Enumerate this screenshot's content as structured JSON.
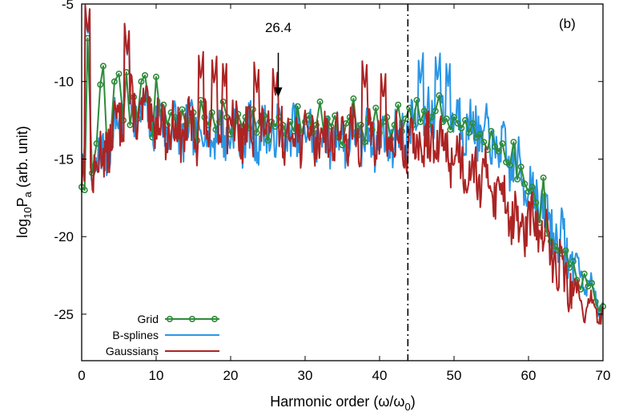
{
  "chart_data": {
    "type": "line",
    "panel_label": "(b)",
    "xlabel": {
      "main": "Harmonic order (ω/ω",
      "sub": "0",
      "close": ")"
    },
    "ylabel": {
      "prefix": "log",
      "sub1": "10",
      "mid": "P",
      "sub2": "a",
      "suffix": " (arb. unit)"
    },
    "xlim": [
      0,
      70
    ],
    "ylim": [
      -28,
      -5
    ],
    "x_ticks": [
      0,
      10,
      20,
      30,
      40,
      50,
      60,
      70
    ],
    "y_ticks": [
      -5,
      -10,
      -15,
      -20,
      -25
    ],
    "vertical_line": {
      "x": 43.8,
      "style": "dash-dot"
    },
    "annotation": {
      "text": "26.4",
      "x": 26.4,
      "arrow_from_y": -6.8,
      "arrow_to_y": -11.0
    },
    "grid": false,
    "legend_position": "bottom-left",
    "colors": {
      "grid": "#2e8b3a",
      "bsplines": "#2a96e6",
      "gaussians": "#ac2424"
    },
    "series": [
      {
        "name": "Grid",
        "marker": "circle",
        "points": [
          [
            0,
            -16.8
          ],
          [
            0.4,
            -17.0
          ],
          [
            0.8,
            -7.2
          ],
          [
            1.4,
            -15.9
          ],
          [
            2.0,
            -14.0
          ],
          [
            2.5,
            -10.2
          ],
          [
            2.9,
            -9.0
          ],
          [
            3.4,
            -14.2
          ],
          [
            3.9,
            -13.5
          ],
          [
            4.4,
            -10.0
          ],
          [
            5.0,
            -9.5
          ],
          [
            5.6,
            -12.5
          ],
          [
            6.0,
            -9.4
          ],
          [
            6.5,
            -12.8
          ],
          [
            7.0,
            -11.0
          ],
          [
            7.5,
            -12.4
          ],
          [
            8.0,
            -10.0
          ],
          [
            8.5,
            -9.6
          ],
          [
            9.0,
            -11.2
          ],
          [
            9.5,
            -13.6
          ],
          [
            10.0,
            -9.7
          ],
          [
            10.5,
            -12.0
          ],
          [
            11.0,
            -11.5
          ],
          [
            11.5,
            -12.8
          ],
          [
            12.0,
            -12.0
          ],
          [
            12.5,
            -12.3
          ],
          [
            13.0,
            -13.6
          ],
          [
            13.5,
            -11.8
          ],
          [
            14.0,
            -12.8
          ],
          [
            14.5,
            -12.5
          ],
          [
            15.0,
            -12.0
          ],
          [
            15.5,
            -13.8
          ],
          [
            16.0,
            -11.2
          ],
          [
            16.5,
            -12.3
          ],
          [
            17.0,
            -12.8
          ],
          [
            17.5,
            -12.0
          ],
          [
            18.0,
            -13.1
          ],
          [
            18.5,
            -12.6
          ],
          [
            19.0,
            -11.3
          ],
          [
            19.5,
            -12.3
          ],
          [
            20.0,
            -13.4
          ],
          [
            20.5,
            -12.6
          ],
          [
            21.0,
            -12.1
          ],
          [
            21.5,
            -12.9
          ],
          [
            22.0,
            -12.3
          ],
          [
            22.5,
            -13.0
          ],
          [
            23.0,
            -11.8
          ],
          [
            23.5,
            -13.3
          ],
          [
            24.0,
            -12.6
          ],
          [
            24.5,
            -12.2
          ],
          [
            25.0,
            -13.8
          ],
          [
            25.5,
            -12.6
          ],
          [
            26.0,
            -12.9
          ],
          [
            26.5,
            -12.3
          ],
          [
            27.0,
            -12.8
          ],
          [
            27.5,
            -13.4
          ],
          [
            28.0,
            -12.6
          ],
          [
            28.5,
            -13.2
          ],
          [
            29.0,
            -11.6
          ],
          [
            29.5,
            -13.3
          ],
          [
            30.0,
            -12.6
          ],
          [
            30.5,
            -12.2
          ],
          [
            31.0,
            -13.3
          ],
          [
            31.5,
            -12.8
          ],
          [
            32.0,
            -11.3
          ],
          [
            32.5,
            -13.2
          ],
          [
            33.0,
            -12.4
          ],
          [
            33.5,
            -12.9
          ],
          [
            34.0,
            -12.2
          ],
          [
            34.5,
            -13.6
          ],
          [
            35.0,
            -14.1
          ],
          [
            35.5,
            -12.7
          ],
          [
            36.0,
            -12.3
          ],
          [
            36.5,
            -11.1
          ],
          [
            37.0,
            -13.5
          ],
          [
            37.5,
            -12.8
          ],
          [
            38.0,
            -13.9
          ],
          [
            38.5,
            -12.4
          ],
          [
            39.0,
            -13.1
          ],
          [
            39.5,
            -11.7
          ],
          [
            40.0,
            -13.3
          ],
          [
            40.5,
            -12.6
          ],
          [
            41.0,
            -12.3
          ],
          [
            41.5,
            -13.7
          ],
          [
            42.0,
            -12.8
          ],
          [
            42.5,
            -11.5
          ],
          [
            43.0,
            -13.2
          ],
          [
            43.5,
            -12.4
          ],
          [
            44.0,
            -11.7
          ],
          [
            44.5,
            -12.8
          ],
          [
            45.0,
            -11.2
          ],
          [
            45.5,
            -12.6
          ],
          [
            46.0,
            -11.9
          ],
          [
            46.5,
            -12.8
          ],
          [
            47.0,
            -12.3
          ],
          [
            47.5,
            -11.9
          ],
          [
            48.0,
            -10.9
          ],
          [
            48.5,
            -12.6
          ],
          [
            49.0,
            -12.4
          ],
          [
            49.5,
            -13.1
          ],
          [
            50.0,
            -12.3
          ],
          [
            50.5,
            -12.7
          ],
          [
            51.0,
            -13.0
          ],
          [
            51.5,
            -12.5
          ],
          [
            52.0,
            -13.3
          ],
          [
            52.5,
            -12.7
          ],
          [
            53.0,
            -13.6
          ],
          [
            53.5,
            -13.4
          ],
          [
            54.0,
            -13.9
          ],
          [
            54.5,
            -14.4
          ],
          [
            55.0,
            -13.2
          ],
          [
            55.5,
            -14.2
          ],
          [
            56.0,
            -14.5
          ],
          [
            56.5,
            -14.0
          ],
          [
            57.0,
            -15.2
          ],
          [
            57.5,
            -15.4
          ],
          [
            58.0,
            -13.9
          ],
          [
            58.5,
            -16.3
          ],
          [
            59.0,
            -15.5
          ],
          [
            59.5,
            -16.6
          ],
          [
            60.0,
            -17.1
          ],
          [
            60.5,
            -16.8
          ],
          [
            61.0,
            -17.8
          ],
          [
            61.5,
            -19.1
          ],
          [
            62.0,
            -16.2
          ],
          [
            62.5,
            -19.8
          ],
          [
            63.0,
            -20.3
          ],
          [
            63.5,
            -20.6
          ],
          [
            64.0,
            -20.9
          ],
          [
            64.5,
            -21.1
          ],
          [
            65.0,
            -20.9
          ],
          [
            65.5,
            -22.0
          ],
          [
            66.0,
            -21.6
          ],
          [
            66.5,
            -22.8
          ],
          [
            67.0,
            -23.4
          ],
          [
            67.5,
            -22.4
          ],
          [
            68.0,
            -23.2
          ],
          [
            68.5,
            -23.0
          ],
          [
            69.0,
            -24.2
          ],
          [
            69.5,
            -24.8
          ],
          [
            70.0,
            -24.5
          ]
        ]
      },
      {
        "name": "B-splines",
        "seed": 7,
        "anchors": [
          [
            0,
            -16.3
          ],
          [
            2,
            -15.6
          ],
          [
            6,
            -11.5
          ],
          [
            12,
            -13.1
          ],
          [
            20,
            -13.4
          ],
          [
            30,
            -13.4
          ],
          [
            40,
            -13.7
          ],
          [
            44,
            -13.3
          ],
          [
            47,
            -11.9
          ],
          [
            50,
            -12.3
          ],
          [
            54,
            -13.5
          ],
          [
            57,
            -14.8
          ],
          [
            60,
            -16.5
          ],
          [
            63,
            -19.2
          ],
          [
            66,
            -21.6
          ],
          [
            70,
            -24.6
          ]
        ],
        "peaks": [
          [
            0.8,
            -7.1
          ],
          [
            6.1,
            -8.4
          ],
          [
            45.5,
            -10.2
          ],
          [
            47.8,
            -10.1
          ],
          [
            49.2,
            -10.3
          ]
        ]
      },
      {
        "name": "Gaussians",
        "seed": 13,
        "anchors": [
          [
            0,
            -16.0
          ],
          [
            2,
            -15.6
          ],
          [
            6,
            -11.5
          ],
          [
            12,
            -13.1
          ],
          [
            20,
            -13.2
          ],
          [
            30,
            -13.4
          ],
          [
            40,
            -13.6
          ],
          [
            44,
            -14.2
          ],
          [
            48,
            -14.0
          ],
          [
            52,
            -15.5
          ],
          [
            55,
            -16.5
          ],
          [
            57,
            -17.5
          ],
          [
            58.5,
            -19.5
          ],
          [
            61,
            -19.0
          ],
          [
            63,
            -21.0
          ],
          [
            66,
            -23.5
          ],
          [
            67.5,
            -24.5
          ],
          [
            70,
            -24.7
          ]
        ],
        "peaks": [
          [
            0.8,
            -7.0
          ],
          [
            6.1,
            -8.3
          ],
          [
            16.0,
            -10.0
          ],
          [
            17.8,
            -10.3
          ],
          [
            19.2,
            -10.3
          ],
          [
            23.5,
            -10.8
          ],
          [
            26.0,
            -11.1
          ],
          [
            38.0,
            -10.6
          ],
          [
            40.5,
            -11.3
          ]
        ]
      }
    ]
  }
}
